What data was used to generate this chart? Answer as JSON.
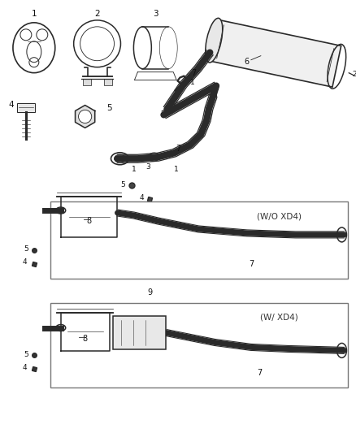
{
  "bg_color": "#ffffff",
  "line_color": "#2a2a2a",
  "fig_width": 4.38,
  "fig_height": 5.33,
  "dpi": 100,
  "box1_label": "(W/O XD4)",
  "box2_label": "(W/ XD4)",
  "label_9": "9"
}
